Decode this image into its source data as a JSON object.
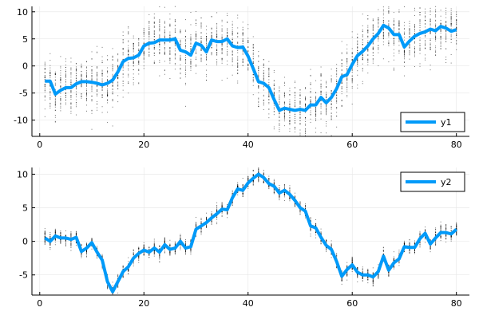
{
  "chart_data": [
    {
      "type": "line",
      "title": "",
      "xlabel": "",
      "ylabel": "",
      "xlim": [
        -1.5,
        82.5
      ],
      "ylim": [
        -13,
        11
      ],
      "x_ticks": [
        0,
        20,
        40,
        60,
        80
      ],
      "y_ticks": [
        -10,
        -5,
        0,
        5,
        10
      ],
      "grid": true,
      "legend_position": "bottom-right",
      "series_color": "#009af9",
      "scatter_color": "#000000",
      "series": [
        {
          "name": "y1",
          "x": [
            1,
            2,
            3,
            4,
            5,
            6,
            7,
            8,
            9,
            10,
            11,
            12,
            13,
            14,
            15,
            16,
            17,
            18,
            19,
            20,
            21,
            22,
            23,
            24,
            25,
            26,
            27,
            28,
            29,
            30,
            31,
            32,
            33,
            34,
            35,
            36,
            37,
            38,
            39,
            40,
            41,
            42,
            43,
            44,
            45,
            46,
            47,
            48,
            49,
            50,
            51,
            52,
            53,
            54,
            55,
            56,
            57,
            58,
            59,
            60,
            61,
            62,
            63,
            64,
            65,
            66,
            67,
            68,
            69,
            70,
            71,
            72,
            73,
            74,
            75,
            76,
            77,
            78,
            79,
            80
          ],
          "y": [
            -2.8,
            -2.8,
            -5.2,
            -4.5,
            -4.0,
            -4.0,
            -3.3,
            -2.9,
            -2.9,
            -3.0,
            -3.2,
            -3.5,
            -3.2,
            -2.6,
            -1.1,
            0.8,
            1.4,
            1.5,
            2.0,
            3.7,
            4.2,
            4.3,
            4.8,
            4.8,
            4.8,
            5.0,
            2.9,
            2.6,
            2.0,
            4.2,
            3.8,
            2.6,
            4.8,
            4.5,
            4.5,
            5.0,
            3.7,
            3.4,
            3.5,
            1.8,
            -0.5,
            -2.9,
            -3.2,
            -4.0,
            -6.2,
            -8.2,
            -7.8,
            -8.0,
            -8.2,
            -8.0,
            -8.2,
            -7.2,
            -7.2,
            -5.8,
            -6.8,
            -5.8,
            -4.2,
            -2.0,
            -1.6,
            0.3,
            1.9,
            2.7,
            3.7,
            5.0,
            6.0,
            7.5,
            7.0,
            5.8,
            5.8,
            3.5,
            4.6,
            5.5,
            6.0,
            6.3,
            6.8,
            6.5,
            7.3,
            7.0,
            6.4,
            6.7
          ]
        }
      ]
    },
    {
      "type": "line",
      "title": "",
      "xlabel": "",
      "ylabel": "",
      "xlim": [
        -1.5,
        82.5
      ],
      "ylim": [
        -8,
        11
      ],
      "x_ticks": [
        0,
        20,
        40,
        60,
        80
      ],
      "y_ticks": [
        -5,
        0,
        5,
        10
      ],
      "grid": true,
      "legend_position": "top-right",
      "series_color": "#009af9",
      "scatter_color": "#000000",
      "series": [
        {
          "name": "y2",
          "x": [
            1,
            2,
            3,
            4,
            5,
            6,
            7,
            8,
            9,
            10,
            11,
            12,
            13,
            14,
            15,
            16,
            17,
            18,
            19,
            20,
            21,
            22,
            23,
            24,
            25,
            26,
            27,
            28,
            29,
            30,
            31,
            32,
            33,
            34,
            35,
            36,
            37,
            38,
            39,
            40,
            41,
            42,
            43,
            44,
            45,
            46,
            47,
            48,
            49,
            50,
            51,
            52,
            53,
            54,
            55,
            56,
            57,
            58,
            59,
            60,
            61,
            62,
            63,
            64,
            65,
            66,
            67,
            68,
            69,
            70,
            71,
            72,
            73,
            74,
            75,
            76,
            77,
            78,
            79,
            80
          ],
          "y": [
            0.5,
            0.0,
            0.8,
            0.5,
            0.5,
            0.3,
            0.6,
            -1.5,
            -1.0,
            -0.2,
            -1.6,
            -2.8,
            -6.0,
            -7.5,
            -6.0,
            -4.5,
            -3.8,
            -2.5,
            -1.8,
            -1.3,
            -1.6,
            -1.0,
            -1.6,
            -0.5,
            -1.2,
            -1.0,
            0.0,
            -1.0,
            -0.8,
            1.8,
            2.3,
            2.8,
            3.5,
            4.1,
            4.8,
            4.7,
            6.5,
            7.8,
            7.6,
            8.7,
            9.4,
            10.0,
            9.5,
            8.6,
            8.2,
            7.2,
            7.6,
            7.0,
            6.1,
            5.0,
            4.5,
            2.3,
            2.0,
            0.6,
            -0.6,
            -1.2,
            -3.0,
            -5.2,
            -4.2,
            -3.5,
            -4.6,
            -5.0,
            -5.0,
            -5.3,
            -4.5,
            -2.2,
            -4.3,
            -3.2,
            -2.6,
            -0.8,
            -0.9,
            -0.9,
            0.4,
            1.2,
            -0.4,
            0.5,
            1.3,
            1.3,
            1.1,
            1.8
          ]
        }
      ]
    }
  ]
}
